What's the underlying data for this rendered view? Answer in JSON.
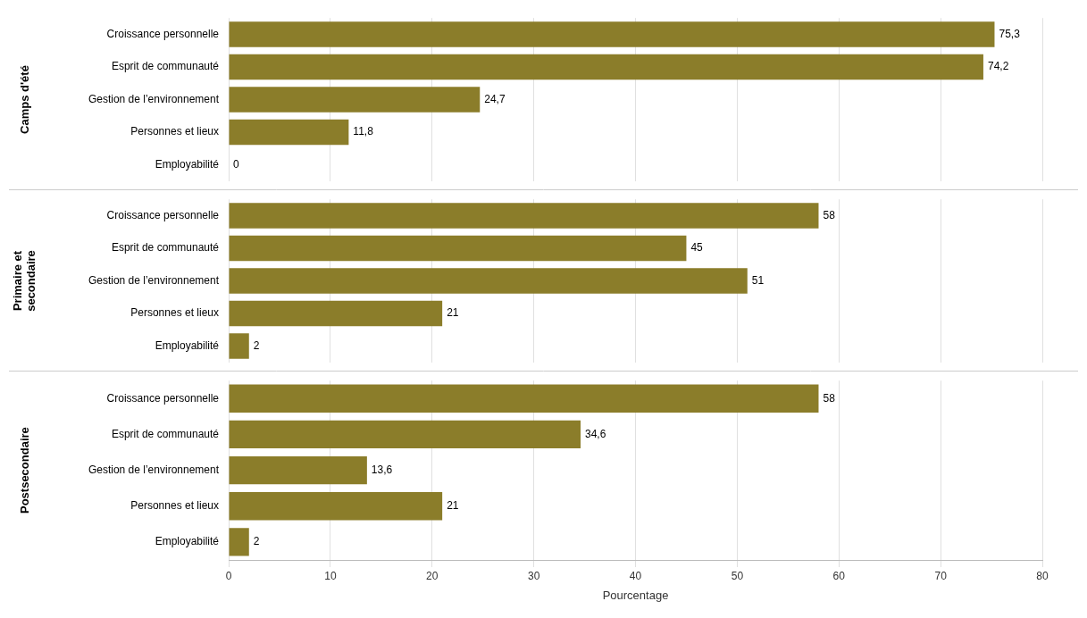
{
  "chart_data": [
    {
      "type": "bar",
      "orientation": "horizontal",
      "title": "Camps d'été",
      "categories": [
        "Croissance personnelle",
        "Esprit de communauté",
        "Gestion de l’environnement",
        "Personnes et lieux",
        "Employabilité"
      ],
      "values": [
        75.3,
        74.2,
        24.7,
        11.8,
        0
      ],
      "value_labels": [
        "75,3",
        "74,2",
        "24,7",
        "11,8",
        "0"
      ],
      "data_labels": true,
      "color": "#8B7D2A",
      "xlim": [
        0,
        80
      ],
      "xticks": [
        0,
        10,
        20,
        30,
        40,
        50,
        60,
        70,
        80
      ],
      "grid": true,
      "tick_labels": "y"
    },
    {
      "type": "bar",
      "orientation": "horizontal",
      "title": "Primaire et\nsecondaire",
      "categories": [
        "Croissance personnelle",
        "Esprit de communauté",
        "Gestion de l’environnement",
        "Personnes et lieux",
        "Employabilité"
      ],
      "values": [
        58,
        45,
        51,
        21,
        2
      ],
      "value_labels": [
        "58",
        "45",
        "51",
        "21",
        "2"
      ],
      "data_labels": true,
      "color": "#8B7D2A",
      "xlim": [
        0,
        80
      ],
      "xticks": [
        0,
        10,
        20,
        30,
        40,
        50,
        60,
        70,
        80
      ],
      "grid": true,
      "tick_labels": "y"
    },
    {
      "type": "bar",
      "orientation": "horizontal",
      "title": "Postsecondaire",
      "categories": [
        "Croissance personnelle",
        "Esprit de communauté",
        "Gestion de l’environnement",
        "Personnes et lieux",
        "Employabilité"
      ],
      "values": [
        58,
        34.6,
        13.6,
        21,
        2
      ],
      "value_labels": [
        "58",
        "34,6",
        "13,6",
        "21",
        "2"
      ],
      "data_labels": true,
      "color": "#8B7D2A",
      "xlabel": "Pourcentage",
      "xlim": [
        0,
        80
      ],
      "xticks": [
        0,
        10,
        20,
        30,
        40,
        50,
        60,
        70,
        80
      ],
      "grid": true
    }
  ]
}
